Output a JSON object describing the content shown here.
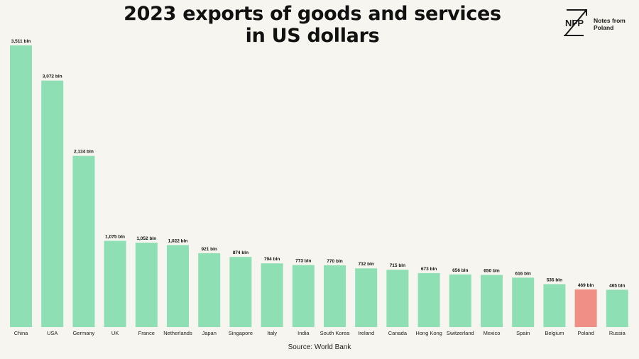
{
  "title_line1": "2023 exports of goods and services",
  "title_line2": "in US dollars",
  "logo": {
    "mark_text": "NFP",
    "line1": "Notes from",
    "line2": "Poland"
  },
  "source": "Source: World Bank",
  "colors": {
    "bar": "#8ee0b4",
    "highlight": "#ef8f86",
    "background": "#f6f5ef",
    "text": "#111111"
  },
  "chart_data": {
    "type": "bar",
    "title": "2023 exports of goods and services in US dollars",
    "unit_suffix": " bln",
    "categories": [
      "China",
      "USA",
      "Germany",
      "UK",
      "France",
      "Netherlands",
      "Japan",
      "Singapore",
      "Italy",
      "India",
      "South Korea",
      "Ireland",
      "Canada",
      "Hong Kong",
      "Switzerland",
      "Mexico",
      "Spain",
      "Belgium",
      "Poland",
      "Russia"
    ],
    "values": [
      3511,
      3072,
      2134,
      1075,
      1052,
      1022,
      921,
      874,
      794,
      773,
      770,
      732,
      715,
      673,
      656,
      650,
      616,
      535,
      469,
      465
    ],
    "labels": [
      "3,511 bln",
      "3,072 bln",
      "2,134 bln",
      "1,075 bln",
      "1,052 bln",
      "1,022 bln",
      "921 bln",
      "874 bln",
      "794 bln",
      "773 bln",
      "770 bln",
      "732 bln",
      "715 bln",
      "673 bln",
      "656 bln",
      "650 bln",
      "616 bln",
      "535 bln",
      "469 bln",
      "465 bln"
    ],
    "highlight": "Poland",
    "ylim": [
      0,
      3511
    ],
    "grid": false,
    "legend": "none"
  }
}
